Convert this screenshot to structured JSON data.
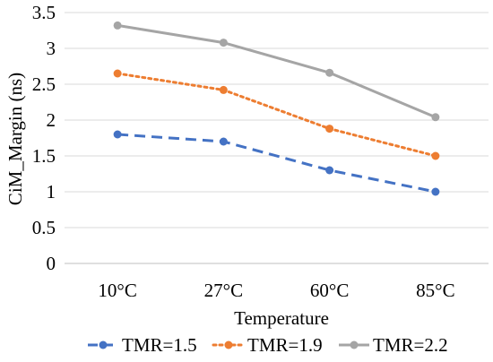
{
  "chart_data": {
    "type": "line",
    "title": "",
    "xlabel": "Temperature",
    "ylabel": "CiM_Margin (ns)",
    "categories": [
      "10°C",
      "27°C",
      "60°C",
      "85°C"
    ],
    "ylim": [
      0,
      3.5
    ],
    "yticks": [
      "0",
      "0.5",
      "1",
      "1.5",
      "2",
      "2.5",
      "3",
      "3.5"
    ],
    "grid": "horizontal",
    "legend_position": "bottom",
    "series": [
      {
        "name": "TMR=1.5",
        "values": [
          1.8,
          1.7,
          1.3,
          1.0
        ],
        "color": "#4472C4",
        "line_style": "dashed",
        "marker": "circle"
      },
      {
        "name": "TMR=1.9",
        "values": [
          2.65,
          2.42,
          1.88,
          1.5
        ],
        "color": "#ED7D31",
        "line_style": "dotted",
        "marker": "circle"
      },
      {
        "name": "TMR=2.2",
        "values": [
          3.32,
          3.08,
          2.66,
          2.04
        ],
        "color": "#A5A5A5",
        "line_style": "solid",
        "marker": "circle"
      }
    ]
  }
}
